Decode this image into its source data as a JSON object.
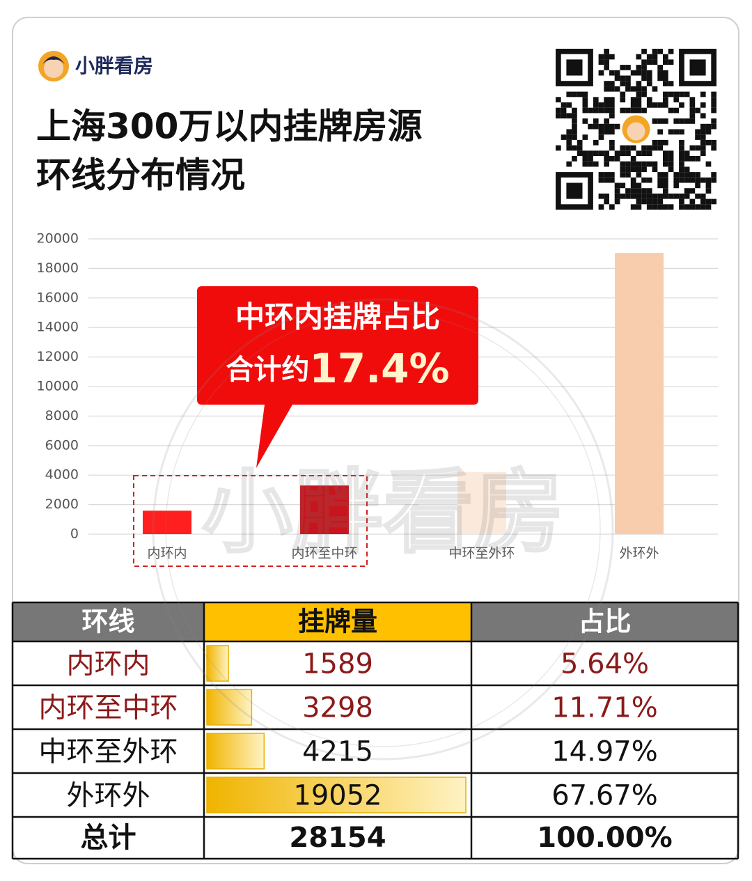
{
  "header": {
    "brand": "小胖看房",
    "title": [
      "上海300万以内挂牌房源",
      "环线分布情况"
    ]
  },
  "chart_data": {
    "type": "bar",
    "categories": [
      "内环内",
      "内环至中环",
      "中环至外环",
      "外环外"
    ],
    "values": [
      1589,
      3298,
      4215,
      19052
    ],
    "colors": [
      "#ff1f1f",
      "#c8141c",
      "#fbe9dc",
      "#f8cdae"
    ],
    "ylim": [
      0,
      20000
    ],
    "yticks": [
      0,
      2000,
      4000,
      6000,
      8000,
      10000,
      12000,
      14000,
      16000,
      18000,
      20000
    ],
    "grid": true,
    "annotation": {
      "line1": "中环内挂牌占比",
      "line2": "合计约",
      "highlight": "17.4%"
    }
  },
  "table": {
    "headers": [
      "环线",
      "挂牌量",
      "占比"
    ],
    "rows": [
      [
        "内环内",
        1589,
        "5.64%"
      ],
      [
        "内环至中环",
        3298,
        "11.71%"
      ],
      [
        "中环至外环",
        4215,
        "14.97%"
      ],
      [
        "外环外",
        19052,
        "67.67%"
      ]
    ],
    "row_text_colors": [
      "#8b1a1a",
      "#8b1a1a",
      "#111111",
      "#111111"
    ],
    "total": [
      "总计",
      28154,
      "100.00%"
    ]
  }
}
